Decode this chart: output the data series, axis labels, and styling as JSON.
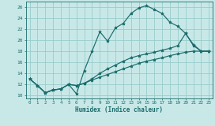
{
  "xlabel": "Humidex (Indice chaleur)",
  "xlim": [
    -0.5,
    23.5
  ],
  "ylim": [
    9.5,
    27.0
  ],
  "yticks": [
    10,
    12,
    14,
    16,
    18,
    20,
    22,
    24,
    26
  ],
  "xticks": [
    0,
    1,
    2,
    3,
    4,
    5,
    6,
    7,
    8,
    9,
    10,
    11,
    12,
    13,
    14,
    15,
    16,
    17,
    18,
    19,
    20,
    21,
    22,
    23
  ],
  "bg_color": "#c8e8e8",
  "grid_color": "#99cccc",
  "line_color": "#1a6b6b",
  "curve1_x": [
    0,
    1,
    2,
    3,
    4,
    5,
    6,
    7,
    8,
    9,
    10,
    11,
    12,
    13,
    14,
    15,
    16,
    17,
    18,
    19,
    20,
    21,
    22,
    23
  ],
  "curve1_y": [
    13,
    11.8,
    10.5,
    11.0,
    11.2,
    12.0,
    10.3,
    14.5,
    18.0,
    21.5,
    19.8,
    22.2,
    23.0,
    24.8,
    25.8,
    26.2,
    25.5,
    24.8,
    23.2,
    22.5,
    21.2,
    19.0,
    18.0,
    18.0
  ],
  "curve2_x": [
    0,
    1,
    2,
    3,
    4,
    5,
    6,
    7,
    8,
    9,
    10,
    11,
    12,
    13,
    14,
    15,
    16,
    17,
    18,
    19,
    20,
    21,
    22,
    23
  ],
  "curve2_y": [
    13,
    11.8,
    10.5,
    11.0,
    11.2,
    12.0,
    11.8,
    12.2,
    13.0,
    14.0,
    14.8,
    15.5,
    16.2,
    16.8,
    17.2,
    17.5,
    17.8,
    18.2,
    18.5,
    19.0,
    21.2,
    19.2,
    18.0,
    18.0
  ],
  "curve3_x": [
    0,
    1,
    2,
    3,
    4,
    5,
    6,
    7,
    8,
    9,
    10,
    11,
    12,
    13,
    14,
    15,
    16,
    17,
    18,
    19,
    20,
    21,
    22,
    23
  ],
  "curve3_y": [
    13,
    11.8,
    10.5,
    11.0,
    11.2,
    12.0,
    11.8,
    12.2,
    12.8,
    13.3,
    13.8,
    14.3,
    14.8,
    15.3,
    15.8,
    16.2,
    16.5,
    16.8,
    17.2,
    17.5,
    17.8,
    18.0,
    18.0,
    18.0
  ]
}
